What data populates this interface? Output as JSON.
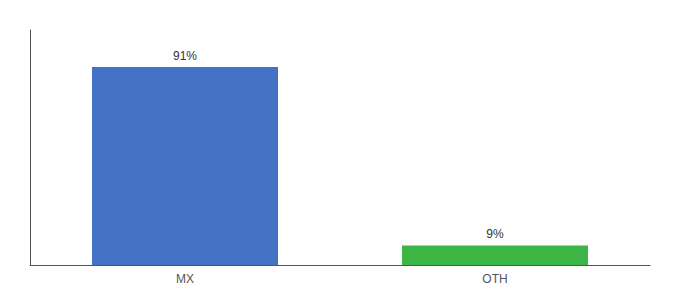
{
  "chart_data": {
    "type": "bar",
    "categories": [
      "MX",
      "OTH"
    ],
    "values": [
      91,
      9
    ],
    "value_labels": [
      "91%",
      "9%"
    ],
    "colors": [
      "#4472c4",
      "#3cb544"
    ],
    "ylim": [
      0,
      108
    ],
    "tick_labels": "x",
    "data_labels": true,
    "grid": false
  }
}
